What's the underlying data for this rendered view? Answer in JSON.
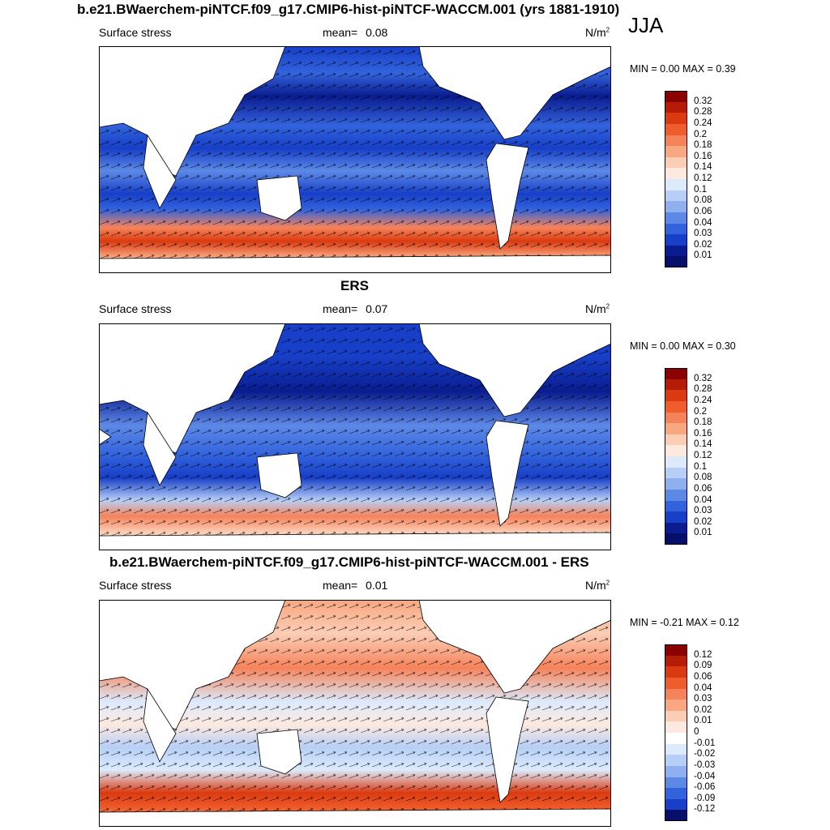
{
  "figure": {
    "main_title": "b.e21.BWaerchem-piNTCF.f09_g17.CMIP6-hist-piNTCF-WACCM.001 (yrs 1881-1910)",
    "season": "JJA",
    "panels": [
      {
        "title": "",
        "left_label": "Surface stress",
        "mean_label": "mean=",
        "mean_value": "0.08",
        "units": "N/m",
        "units_sup": "2",
        "minmax": "MIN =   0.00 MAX =   0.39",
        "colorbar_levels": [
          "0.32",
          "0.28",
          "0.24",
          "0.2",
          "0.18",
          "0.16",
          "0.14",
          "0.12",
          "0.1",
          "0.08",
          "0.06",
          "0.04",
          "0.03",
          "0.02",
          "0.01"
        ],
        "colorbar_colors": [
          "#8b0000",
          "#b51c05",
          "#db3a10",
          "#ef5d2b",
          "#f5835a",
          "#f8a780",
          "#fbcdb5",
          "#fde9df",
          "#dceafc",
          "#b7cff6",
          "#8eb0ef",
          "#5d89e6",
          "#3363dc",
          "#173fc7",
          "#0a1c8f",
          "#06106b"
        ]
      },
      {
        "title": "ERS",
        "left_label": "Surface stress",
        "mean_label": "mean=",
        "mean_value": "0.07",
        "units": "N/m",
        "units_sup": "2",
        "minmax": "MIN =   0.00 MAX =   0.30",
        "colorbar_levels": [
          "0.32",
          "0.28",
          "0.24",
          "0.2",
          "0.18",
          "0.16",
          "0.14",
          "0.12",
          "0.1",
          "0.08",
          "0.06",
          "0.04",
          "0.03",
          "0.02",
          "0.01"
        ],
        "colorbar_colors": [
          "#8b0000",
          "#b51c05",
          "#db3a10",
          "#ef5d2b",
          "#f5835a",
          "#f8a780",
          "#fbcdb5",
          "#fde9df",
          "#dceafc",
          "#b7cff6",
          "#8eb0ef",
          "#5d89e6",
          "#3363dc",
          "#173fc7",
          "#0a1c8f",
          "#06106b"
        ]
      },
      {
        "title": "b.e21.BWaerchem-piNTCF.f09_g17.CMIP6-hist-piNTCF-WACCM.001 - ERS",
        "left_label": "Surface stress",
        "mean_label": "mean=",
        "mean_value": "0.01",
        "units": "N/m",
        "units_sup": "2",
        "minmax": "MIN =  -0.21 MAX =   0.12",
        "colorbar_levels": [
          "0.12",
          "0.09",
          "0.06",
          "0.04",
          "0.03",
          "0.02",
          "0.01",
          "0",
          "-0.01",
          "-0.02",
          "-0.03",
          "-0.04",
          "-0.06",
          "-0.09",
          "-0.12"
        ],
        "colorbar_colors": [
          "#8b0000",
          "#b51c05",
          "#db3a10",
          "#ef5d2b",
          "#f5835a",
          "#f8a780",
          "#fbcdb5",
          "#fde9df",
          "#ffffff",
          "#dceafc",
          "#b7cff6",
          "#8eb0ef",
          "#5d89e6",
          "#3363dc",
          "#173fc7",
          "#06106b"
        ]
      }
    ],
    "colors": {
      "land": "#ffffff",
      "coast": "#000000",
      "frame": "#000000"
    }
  }
}
